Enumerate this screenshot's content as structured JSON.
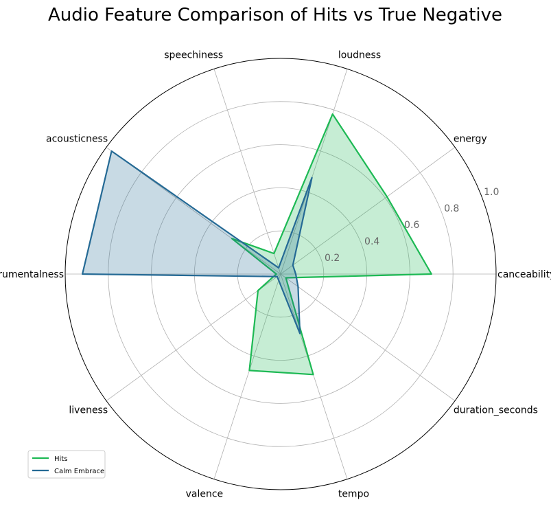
{
  "chart_data": {
    "type": "radar",
    "title": "Audio Feature Comparison of Hits vs True Negative",
    "axes": [
      "danceability",
      "energy",
      "loudness",
      "speechiness",
      "acousticness",
      "instrumentalness",
      "liveness",
      "valence",
      "tempo",
      "duration_seconds"
    ],
    "axis_display_labels": [
      "canceability",
      "energy",
      "loudness",
      "speechiness",
      "acousticness",
      "instrumentalness",
      "liveness",
      "valence",
      "tempo",
      "duration_seconds"
    ],
    "rlim": [
      0,
      1.0
    ],
    "radial_ticks": [
      0.2,
      0.4,
      0.6,
      0.8,
      1.0
    ],
    "radial_tick_labels": [
      "0.2",
      "0.4",
      "0.6",
      "0.8",
      "1.0"
    ],
    "grid": true,
    "legend_position": "bottom-left",
    "series": [
      {
        "name": "Hits",
        "color": "#1db954",
        "values": [
          0.7,
          0.61,
          0.78,
          0.1,
          0.28,
          0.02,
          0.13,
          0.47,
          0.49,
          0.03
        ]
      },
      {
        "name": "Calm Embrace",
        "color": "#256a95",
        "values": [
          0.07,
          0.07,
          0.47,
          0.03,
          0.97,
          0.92,
          0.02,
          0.03,
          0.29,
          0.1
        ]
      }
    ]
  }
}
